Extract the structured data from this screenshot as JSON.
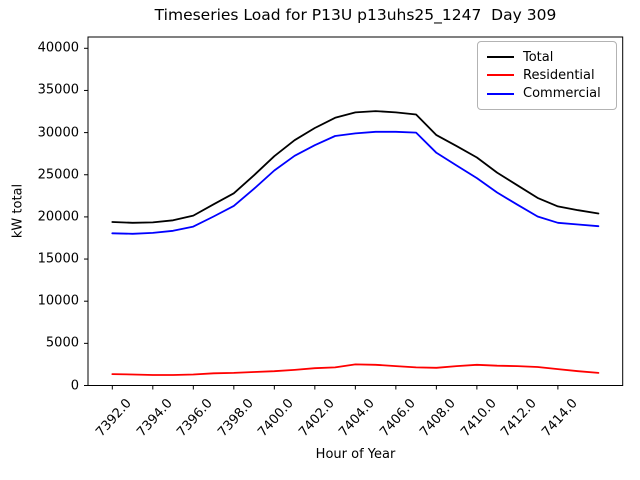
{
  "chart": {
    "title": "Timeseries Load for P13U p13uhs25_1247  Day 309",
    "xlabel": "Hour of Year",
    "ylabel": "kW total"
  },
  "legend": {
    "items": [
      {
        "label": "Total",
        "color": "#000000"
      },
      {
        "label": "Residential",
        "color": "#ff0000"
      },
      {
        "label": "Commercial",
        "color": "#0000ff"
      }
    ]
  },
  "chart_data": {
    "type": "line",
    "title": "Timeseries Load for P13U p13uhs25_1247  Day 309",
    "xlabel": "Hour of Year",
    "ylabel": "kW total",
    "grid": false,
    "legend_position": "upper right",
    "xlim": [
      7390.8,
      7417.2
    ],
    "ylim": [
      0,
      41340
    ],
    "xticks": [
      7392,
      7394,
      7396,
      7398,
      7400,
      7402,
      7404,
      7406,
      7408,
      7410,
      7412,
      7414
    ],
    "xtick_labels": [
      "7392.0",
      "7394.0",
      "7396.0",
      "7398.0",
      "7400.0",
      "7402.0",
      "7404.0",
      "7406.0",
      "7408.0",
      "7410.0",
      "7412.0",
      "7414.0"
    ],
    "yticks": [
      0,
      5000,
      10000,
      15000,
      20000,
      25000,
      30000,
      35000,
      40000
    ],
    "ytick_labels": [
      "0",
      "5000",
      "10000",
      "15000",
      "20000",
      "25000",
      "30000",
      "35000",
      "40000"
    ],
    "x": [
      7392,
      7393,
      7394,
      7395,
      7396,
      7397,
      7398,
      7399,
      7400,
      7401,
      7402,
      7403,
      7404,
      7405,
      7406,
      7407,
      7408,
      7409,
      7410,
      7411,
      7412,
      7413,
      7414,
      7415,
      7416
    ],
    "series": [
      {
        "name": "Total",
        "color": "#000000",
        "values": [
          19400,
          19300,
          19350,
          19600,
          20150,
          21500,
          22800,
          24950,
          27200,
          29100,
          30550,
          31750,
          32400,
          32550,
          32400,
          32150,
          29700,
          28400,
          27050,
          25250,
          23750,
          22250,
          21250,
          20800,
          20400
        ]
      },
      {
        "name": "Residential",
        "color": "#ff0000",
        "values": [
          1350,
          1300,
          1250,
          1250,
          1300,
          1450,
          1500,
          1600,
          1700,
          1850,
          2050,
          2150,
          2500,
          2450,
          2300,
          2150,
          2100,
          2300,
          2450,
          2350,
          2300,
          2200,
          1950,
          1700,
          1500
        ]
      },
      {
        "name": "Commercial",
        "color": "#0000ff",
        "values": [
          18050,
          18000,
          18100,
          18350,
          18850,
          20050,
          21300,
          23350,
          25500,
          27250,
          28500,
          29600,
          29900,
          30100,
          30100,
          30000,
          27600,
          26100,
          24600,
          22900,
          21450,
          20050,
          19300,
          19100,
          18900
        ]
      }
    ]
  }
}
